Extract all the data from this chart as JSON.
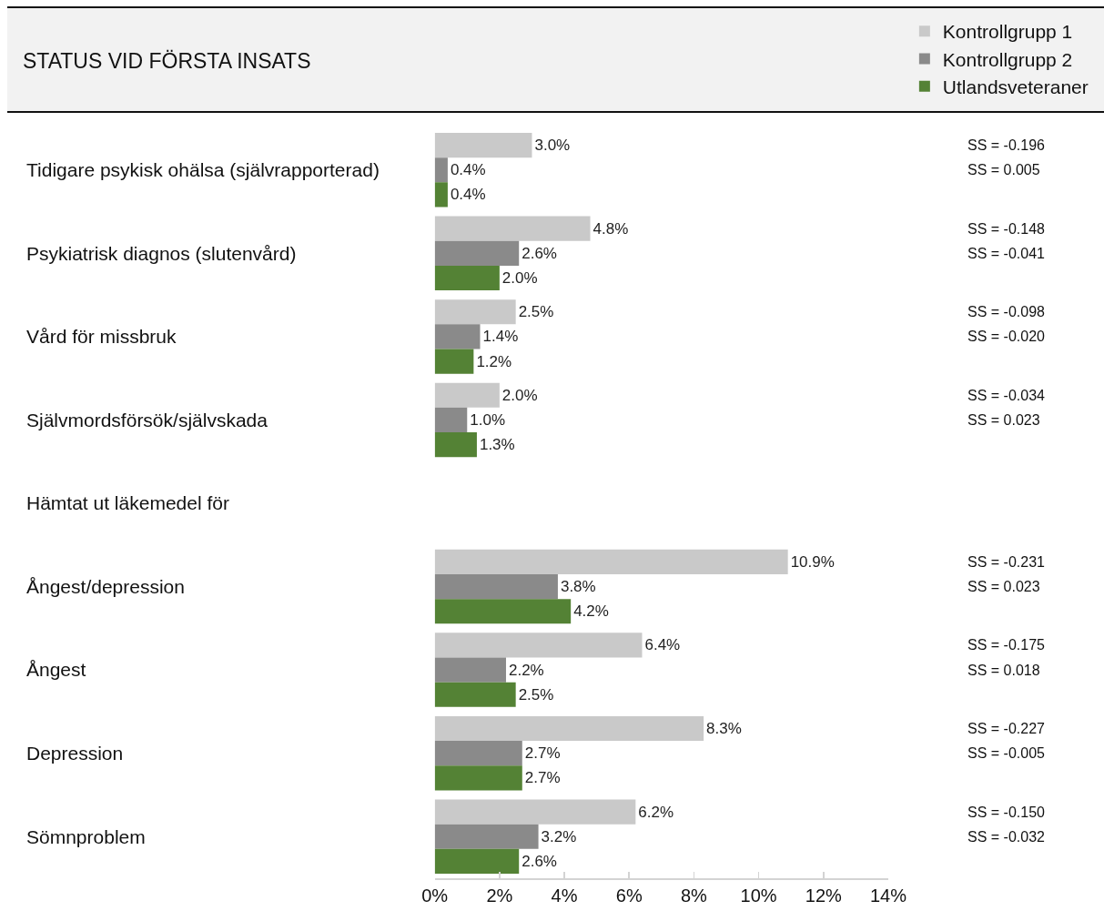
{
  "chart_data": {
    "type": "bar",
    "orientation": "horizontal",
    "title": "STATUS VID FÖRSTA INSATS",
    "categories": [
      "Tidigare psykisk ohälsa (självrapporterad)",
      "Psykiatrisk diagnos (slutenvård)",
      "Vård för missbruk",
      "Självmordsförsök/självskada",
      "Hämtat ut läkemedel för",
      "Ångest/depression",
      "Ångest",
      "Depression",
      "Sömnproblem"
    ],
    "series": [
      {
        "name": "Kontrollgrupp 1",
        "color": "#c9c9c9",
        "values": [
          3.0,
          4.8,
          2.5,
          2.0,
          null,
          10.9,
          6.4,
          8.3,
          6.2
        ],
        "value_labels": [
          "3.0%",
          "4.8%",
          "2.5%",
          "2.0%",
          null,
          "10.9%",
          "6.4%",
          "8.3%",
          "6.2%"
        ]
      },
      {
        "name": "Kontrollgrupp 2",
        "color": "#8a8a8a",
        "values": [
          0.4,
          2.6,
          1.4,
          1.0,
          null,
          3.8,
          2.2,
          2.7,
          3.2
        ],
        "value_labels": [
          "0.4%",
          "2.6%",
          "1.4%",
          "1.0%",
          null,
          "3.8%",
          "2.2%",
          "2.7%",
          "3.2%"
        ]
      },
      {
        "name": "Utlandsveteraner",
        "color": "#548235",
        "values": [
          0.4,
          2.0,
          1.2,
          1.3,
          null,
          4.2,
          2.5,
          2.7,
          2.6
        ],
        "value_labels": [
          "0.4%",
          "2.0%",
          "1.2%",
          "1.3%",
          null,
          "4.2%",
          "2.5%",
          "2.7%",
          "2.6%"
        ]
      }
    ],
    "xlim": [
      0,
      14
    ],
    "xticks": [
      {
        "value": 0,
        "label": "0%"
      },
      {
        "value": 2,
        "label": "2%"
      },
      {
        "value": 4,
        "label": "4%"
      },
      {
        "value": 6,
        "label": "6%"
      },
      {
        "value": 8,
        "label": "8%"
      },
      {
        "value": 10,
        "label": "10%"
      },
      {
        "value": 12,
        "label": "12%"
      },
      {
        "value": 14,
        "label": "14%"
      }
    ],
    "legend": "top right",
    "annotations": [
      "SS = -0.196",
      "SS = 0.005",
      "SS = -0.148",
      "SS = -0.041",
      "SS = -0.098",
      "SS = -0.020",
      "SS = -0.034",
      "SS = 0.023",
      "SS = -0.231",
      "SS = 0.023",
      "SS = -0.175",
      "SS = 0.018",
      "SS = -0.227",
      "SS = -0.005",
      "SS = -0.150",
      "SS = -0.032"
    ]
  }
}
